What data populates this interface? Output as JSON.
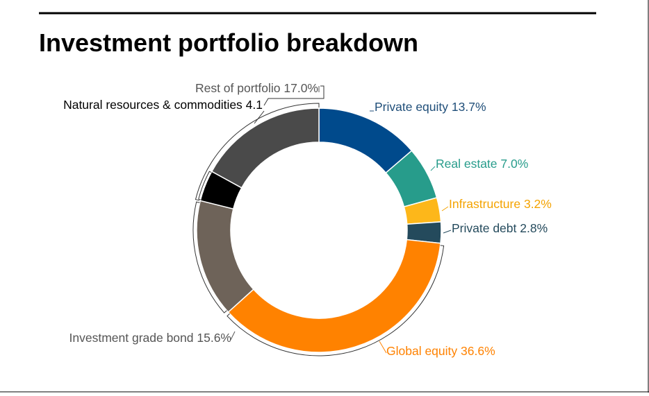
{
  "chart_data": {
    "type": "pie",
    "variant": "donut",
    "title": "Investment portfolio breakdown",
    "slices": [
      {
        "label": "Private equity 13.7%",
        "name": "Private equity",
        "value": 13.7,
        "color": "#004A8C",
        "label_color": "#1F4E79"
      },
      {
        "label": "Real estate 7.0%",
        "name": "Real estate",
        "value": 7.0,
        "color": "#279C8B",
        "label_color": "#279C8B"
      },
      {
        "label": "Infrastructure 3.2%",
        "name": "Infrastructure",
        "value": 3.2,
        "color": "#FDB71A",
        "label_color": "#F4A300"
      },
      {
        "label": "Private debt 2.8%",
        "name": "Private debt",
        "value": 2.8,
        "color": "#244A5C",
        "label_color": "#244A5C"
      },
      {
        "label": "Global equity 36.6%",
        "name": "Global equity",
        "value": 36.6,
        "color": "#FF8200",
        "label_color": "#FF8200"
      },
      {
        "label": "Investment grade bond 15.6%",
        "name": "Investment grade bond",
        "value": 15.6,
        "color": "#6E6359",
        "label_color": "#555555"
      },
      {
        "label": "Natural resources & commodities 4.1",
        "name": "Natural resources & commodities",
        "value": 4.1,
        "color": "#000000",
        "label_color": "#000000"
      },
      {
        "label": "Rest of portfolio 17.0%",
        "name": "Rest of portfolio",
        "value": 17.0,
        "color": "#4A4A4A",
        "label_color": "#555555"
      }
    ],
    "start_angle_deg": 0,
    "direction": "clockwise",
    "grid": false,
    "legend": "none"
  }
}
